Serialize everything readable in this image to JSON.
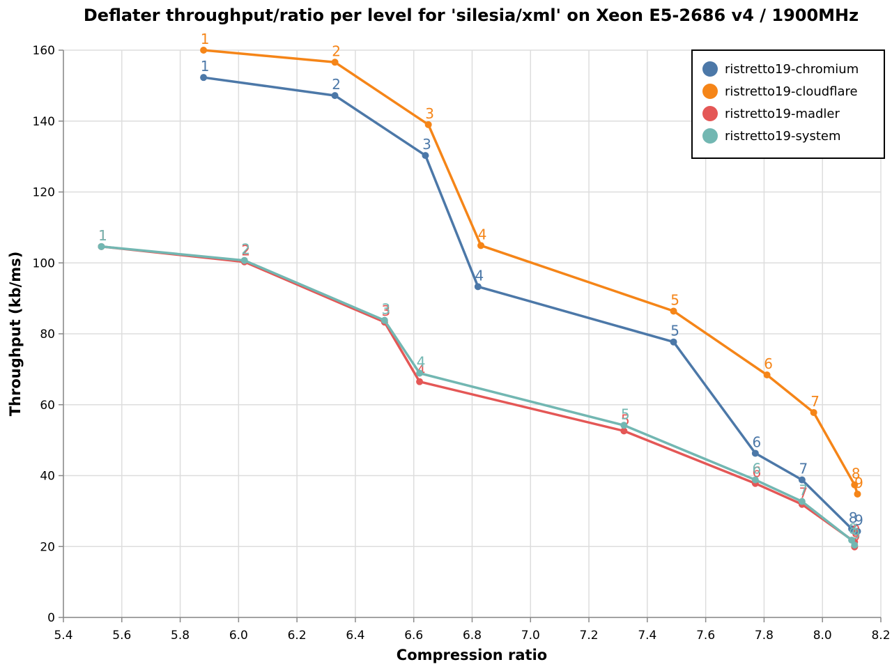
{
  "chart_data": {
    "type": "line",
    "title": "Deflater throughput/ratio per level for 'silesia/xml' on Xeon E5-2686 v4 / 1900MHz",
    "xlabel": "Compression ratio",
    "ylabel": "Throughput (kb/ms)",
    "xlim": [
      5.4,
      8.2
    ],
    "ylim": [
      0,
      160
    ],
    "x_ticks": [
      "5.4",
      "5.6",
      "5.8",
      "6.0",
      "6.2",
      "6.4",
      "6.6",
      "6.8",
      "7.0",
      "7.2",
      "7.4",
      "7.6",
      "7.8",
      "8.0",
      "8.2"
    ],
    "y_ticks": [
      "0",
      "20",
      "40",
      "60",
      "80",
      "100",
      "120",
      "140",
      "160"
    ],
    "grid": true,
    "legend_position": "top-right",
    "series": [
      {
        "name": "ristretto19-chromium",
        "color": "#4c78a8",
        "points": [
          {
            "x": 5.88,
            "y": 152.3,
            "label": "1"
          },
          {
            "x": 6.33,
            "y": 147.2,
            "label": "2"
          },
          {
            "x": 6.64,
            "y": 130.3,
            "label": "3"
          },
          {
            "x": 6.82,
            "y": 93.3,
            "label": "4"
          },
          {
            "x": 7.49,
            "y": 77.7,
            "label": "5"
          },
          {
            "x": 7.77,
            "y": 46.3,
            "label": "6"
          },
          {
            "x": 7.93,
            "y": 38.8,
            "label": "7"
          },
          {
            "x": 8.1,
            "y": 25.0,
            "label": "8"
          },
          {
            "x": 8.12,
            "y": 24.3,
            "label": "9"
          }
        ]
      },
      {
        "name": "ristretto19-cloudflare",
        "color": "#f58518",
        "points": [
          {
            "x": 5.88,
            "y": 160.0,
            "label": "1"
          },
          {
            "x": 6.33,
            "y": 156.6,
            "label": "2"
          },
          {
            "x": 6.65,
            "y": 139.0,
            "label": "3"
          },
          {
            "x": 6.83,
            "y": 104.9,
            "label": "4"
          },
          {
            "x": 7.49,
            "y": 86.4,
            "label": "5"
          },
          {
            "x": 7.81,
            "y": 68.4,
            "label": "6"
          },
          {
            "x": 7.97,
            "y": 57.8,
            "label": "7"
          },
          {
            "x": 8.11,
            "y": 37.4,
            "label": "8"
          },
          {
            "x": 8.12,
            "y": 34.8,
            "label": "9"
          }
        ]
      },
      {
        "name": "ristretto19-madler",
        "color": "#e45756",
        "points": [
          {
            "x": 5.53,
            "y": 104.6,
            "label": "1"
          },
          {
            "x": 6.02,
            "y": 100.3,
            "label": "2"
          },
          {
            "x": 6.5,
            "y": 83.3,
            "label": "3"
          },
          {
            "x": 6.62,
            "y": 66.5,
            "label": "4"
          },
          {
            "x": 7.32,
            "y": 52.6,
            "label": "5"
          },
          {
            "x": 7.77,
            "y": 37.8,
            "label": "6"
          },
          {
            "x": 7.93,
            "y": 31.9,
            "label": "7"
          },
          {
            "x": 8.11,
            "y": 21.3,
            "label": "8"
          },
          {
            "x": 8.11,
            "y": 19.9,
            "label": "9"
          }
        ]
      },
      {
        "name": "ristretto19-system",
        "color": "#72b7b2",
        "points": [
          {
            "x": 5.53,
            "y": 104.6,
            "label": "1"
          },
          {
            "x": 6.02,
            "y": 100.7,
            "label": "2"
          },
          {
            "x": 6.5,
            "y": 83.8,
            "label": "3"
          },
          {
            "x": 6.62,
            "y": 68.9,
            "label": "4"
          },
          {
            "x": 7.32,
            "y": 54.2,
            "label": "5"
          },
          {
            "x": 7.77,
            "y": 38.8,
            "label": "6"
          },
          {
            "x": 7.93,
            "y": 32.7,
            "label": "7"
          },
          {
            "x": 8.1,
            "y": 21.8,
            "label": "8"
          },
          {
            "x": 8.11,
            "y": 20.4,
            "label": "9"
          }
        ]
      }
    ]
  }
}
